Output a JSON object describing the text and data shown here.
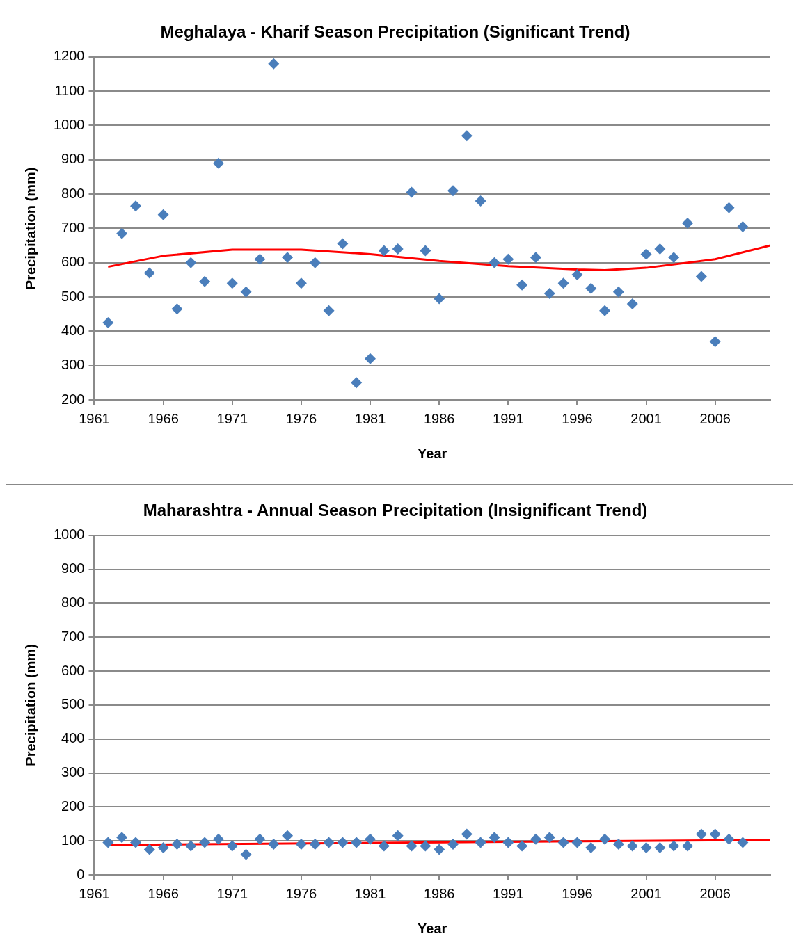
{
  "chart_data": [
    {
      "type": "scatter",
      "title": "Meghalaya - Kharif Season Precipitation (Significant Trend)",
      "xlabel": "Year",
      "ylabel": "Precipitation (mm)",
      "xlim": [
        1961,
        2010
      ],
      "xticks": [
        1961,
        1966,
        1971,
        1976,
        1981,
        1986,
        1991,
        1996,
        2001,
        2006
      ],
      "ylim": [
        200,
        1200
      ],
      "yticks": [
        200,
        300,
        400,
        500,
        600,
        700,
        800,
        900,
        1000,
        1100,
        1200
      ],
      "grid": "y",
      "legend": false,
      "series": [
        {
          "marker": "diamond",
          "color": "#4a7ebb",
          "x": [
            1962,
            1963,
            1964,
            1965,
            1966,
            1967,
            1968,
            1969,
            1970,
            1971,
            1972,
            1973,
            1974,
            1975,
            1976,
            1977,
            1978,
            1979,
            1980,
            1981,
            1982,
            1983,
            1984,
            1985,
            1986,
            1987,
            1988,
            1989,
            1990,
            1991,
            1992,
            1993,
            1994,
            1995,
            1996,
            1997,
            1998,
            1999,
            2000,
            2001,
            2002,
            2003,
            2004,
            2005,
            2006,
            2007,
            2008
          ],
          "values": [
            425,
            685,
            765,
            570,
            740,
            465,
            600,
            545,
            890,
            540,
            515,
            610,
            1180,
            615,
            540,
            600,
            460,
            655,
            250,
            320,
            635,
            640,
            805,
            635,
            495,
            810,
            970,
            780,
            600,
            610,
            535,
            615,
            510,
            540,
            565,
            525,
            460,
            515,
            480,
            625,
            640,
            615,
            715,
            560,
            370,
            760,
            705
          ]
        },
        {
          "type": "line",
          "marker": "none",
          "color": "#ff0000",
          "x": [
            1962,
            1966,
            1971,
            1976,
            1981,
            1986,
            1991,
            1996,
            1998,
            2001,
            2006,
            2010
          ],
          "values": [
            588,
            620,
            638,
            638,
            625,
            605,
            590,
            580,
            578,
            585,
            610,
            650
          ]
        }
      ]
    },
    {
      "type": "scatter",
      "title": "Maharashtra - Annual Season Precipitation (Insignificant Trend)",
      "xlabel": "Year",
      "ylabel": "Precipitation (mm)",
      "xlim": [
        1961,
        2010
      ],
      "xticks": [
        1961,
        1966,
        1971,
        1976,
        1981,
        1986,
        1991,
        1996,
        2001,
        2006
      ],
      "ylim": [
        0,
        1000
      ],
      "yticks": [
        0,
        100,
        200,
        300,
        400,
        500,
        600,
        700,
        800,
        900,
        1000
      ],
      "grid": "y",
      "legend": false,
      "series": [
        {
          "marker": "diamond",
          "color": "#4a7ebb",
          "x": [
            1962,
            1963,
            1964,
            1965,
            1966,
            1967,
            1968,
            1969,
            1970,
            1971,
            1972,
            1973,
            1974,
            1975,
            1976,
            1977,
            1978,
            1979,
            1980,
            1981,
            1982,
            1983,
            1984,
            1985,
            1986,
            1987,
            1988,
            1989,
            1990,
            1991,
            1992,
            1993,
            1994,
            1995,
            1996,
            1997,
            1998,
            1999,
            2000,
            2001,
            2002,
            2003,
            2004,
            2005,
            2006,
            2007,
            2008
          ],
          "values": [
            95,
            110,
            95,
            75,
            80,
            90,
            85,
            95,
            105,
            85,
            60,
            105,
            90,
            115,
            90,
            90,
            95,
            95,
            95,
            105,
            85,
            115,
            85,
            85,
            75,
            90,
            120,
            95,
            110,
            95,
            85,
            105,
            110,
            95,
            95,
            80,
            105,
            90,
            85,
            80,
            80,
            85,
            85,
            120,
            120,
            105,
            95
          ]
        },
        {
          "type": "line",
          "marker": "none",
          "color": "#ff0000",
          "x": [
            1962,
            2010
          ],
          "values": [
            88,
            103
          ]
        }
      ]
    }
  ]
}
